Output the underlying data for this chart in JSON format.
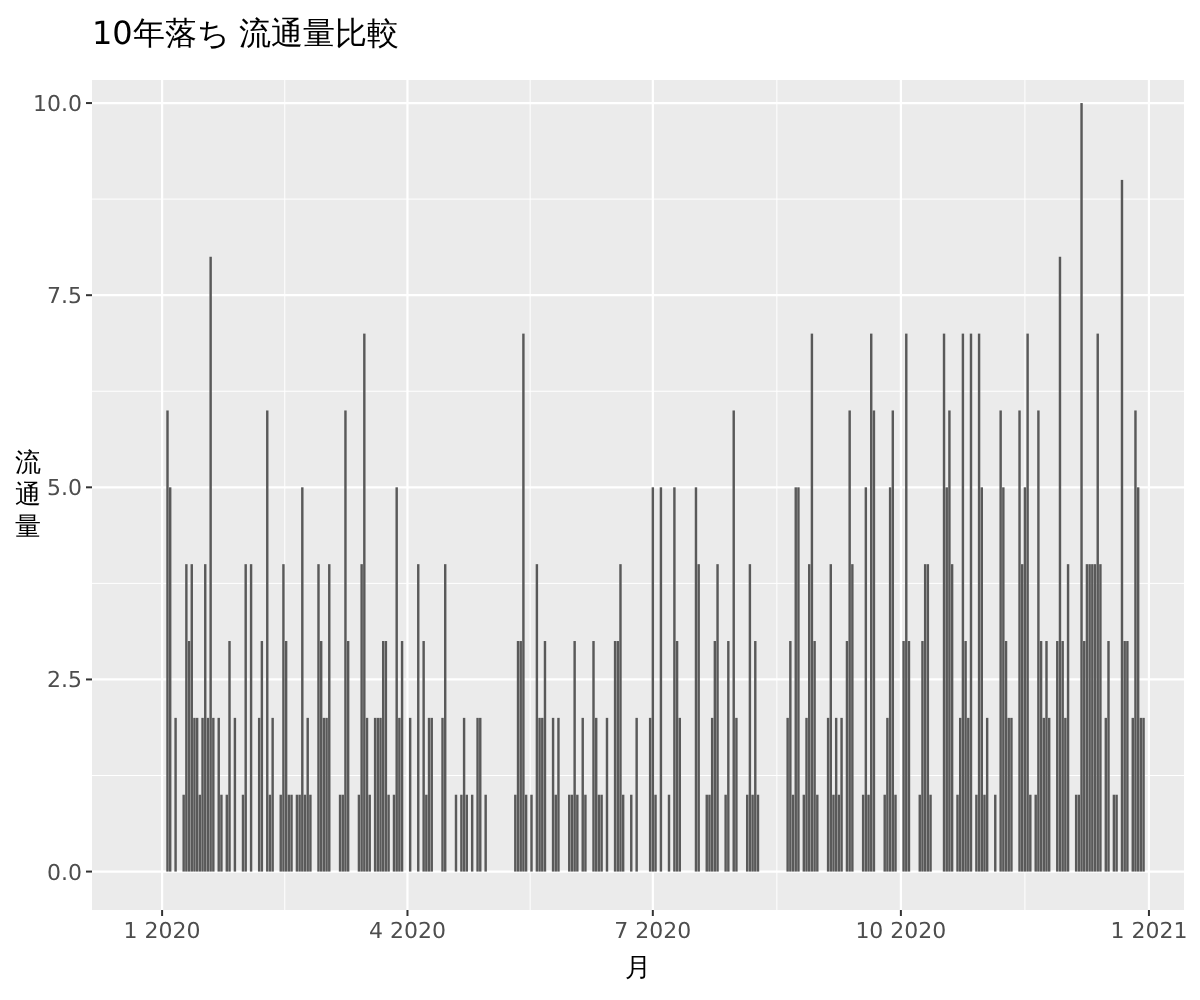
{
  "chart_data": {
    "type": "bar",
    "title": "10年落ち 流通量比較",
    "xlabel": "月",
    "ylabel": "流通量",
    "color": "#595959",
    "grid": true,
    "xlim": [
      "2019-12-06",
      "2021-01-14"
    ],
    "ylim": [
      -0.5,
      10.3
    ],
    "xticks": [
      {
        "value": "2020-01-01",
        "label": "1 2020"
      },
      {
        "value": "2020-04-01",
        "label": "4 2020"
      },
      {
        "value": "2020-07-01",
        "label": "7 2020"
      },
      {
        "value": "2020-10-01",
        "label": "10 2020"
      },
      {
        "value": "2021-01-01",
        "label": "1 2021"
      }
    ],
    "yticks": [
      {
        "value": 0,
        "label": "0.0"
      },
      {
        "value": 2.5,
        "label": "2.5"
      },
      {
        "value": 5,
        "label": "5.0"
      },
      {
        "value": 7.5,
        "label": "7.5"
      },
      {
        "value": 10,
        "label": "10.0"
      }
    ],
    "x": [
      "2020-01-03",
      "2020-01-04",
      "2020-01-06",
      "2020-01-09",
      "2020-01-10",
      "2020-01-11",
      "2020-01-12",
      "2020-01-13",
      "2020-01-14",
      "2020-01-15",
      "2020-01-16",
      "2020-01-17",
      "2020-01-18",
      "2020-01-19",
      "2020-01-20",
      "2020-01-22",
      "2020-01-23",
      "2020-01-25",
      "2020-01-26",
      "2020-01-28",
      "2020-01-31",
      "2020-02-01",
      "2020-02-03",
      "2020-02-06",
      "2020-02-07",
      "2020-02-09",
      "2020-02-10",
      "2020-02-11",
      "2020-02-14",
      "2020-02-15",
      "2020-02-16",
      "2020-02-17",
      "2020-02-18",
      "2020-02-20",
      "2020-02-21",
      "2020-02-22",
      "2020-02-23",
      "2020-02-24",
      "2020-02-25",
      "2020-02-28",
      "2020-02-29",
      "2020-03-01",
      "2020-03-02",
      "2020-03-03",
      "2020-03-07",
      "2020-03-08",
      "2020-03-09",
      "2020-03-10",
      "2020-03-14",
      "2020-03-15",
      "2020-03-16",
      "2020-03-17",
      "2020-03-18",
      "2020-03-20",
      "2020-03-21",
      "2020-03-22",
      "2020-03-23",
      "2020-03-24",
      "2020-03-25",
      "2020-03-27",
      "2020-03-28",
      "2020-03-29",
      "2020-03-30",
      "2020-04-02",
      "2020-04-05",
      "2020-04-07",
      "2020-04-08",
      "2020-04-09",
      "2020-04-10",
      "2020-04-14",
      "2020-04-15",
      "2020-04-19",
      "2020-04-21",
      "2020-04-22",
      "2020-04-23",
      "2020-04-25",
      "2020-04-27",
      "2020-04-28",
      "2020-04-30",
      "2020-05-11",
      "2020-05-12",
      "2020-05-13",
      "2020-05-14",
      "2020-05-15",
      "2020-05-17",
      "2020-05-19",
      "2020-05-20",
      "2020-05-21",
      "2020-05-22",
      "2020-05-25",
      "2020-05-26",
      "2020-05-27",
      "2020-05-31",
      "2020-06-01",
      "2020-06-02",
      "2020-06-03",
      "2020-06-05",
      "2020-06-06",
      "2020-06-09",
      "2020-06-10",
      "2020-06-11",
      "2020-06-12",
      "2020-06-14",
      "2020-06-17",
      "2020-06-18",
      "2020-06-19",
      "2020-06-20",
      "2020-06-23",
      "2020-06-25",
      "2020-06-30",
      "2020-07-01",
      "2020-07-02",
      "2020-07-04",
      "2020-07-07",
      "2020-07-09",
      "2020-07-10",
      "2020-07-11",
      "2020-07-17",
      "2020-07-18",
      "2020-07-21",
      "2020-07-22",
      "2020-07-23",
      "2020-07-24",
      "2020-07-25",
      "2020-07-28",
      "2020-07-29",
      "2020-07-31",
      "2020-08-01",
      "2020-08-05",
      "2020-08-06",
      "2020-08-07",
      "2020-08-08",
      "2020-08-09",
      "2020-08-20",
      "2020-08-21",
      "2020-08-22",
      "2020-08-23",
      "2020-08-24",
      "2020-08-26",
      "2020-08-27",
      "2020-08-28",
      "2020-08-29",
      "2020-08-30",
      "2020-08-31",
      "2020-09-04",
      "2020-09-05",
      "2020-09-06",
      "2020-09-07",
      "2020-09-08",
      "2020-09-09",
      "2020-09-11",
      "2020-09-12",
      "2020-09-13",
      "2020-09-17",
      "2020-09-18",
      "2020-09-19",
      "2020-09-20",
      "2020-09-21",
      "2020-09-25",
      "2020-09-26",
      "2020-09-27",
      "2020-09-28",
      "2020-09-29",
      "2020-10-02",
      "2020-10-03",
      "2020-10-04",
      "2020-10-08",
      "2020-10-09",
      "2020-10-10",
      "2020-10-11",
      "2020-10-12",
      "2020-10-17",
      "2020-10-18",
      "2020-10-19",
      "2020-10-20",
      "2020-10-22",
      "2020-10-23",
      "2020-10-24",
      "2020-10-25",
      "2020-10-26",
      "2020-10-27",
      "2020-10-29",
      "2020-10-30",
      "2020-10-31",
      "2020-11-01",
      "2020-11-02",
      "2020-11-05",
      "2020-11-07",
      "2020-11-08",
      "2020-11-09",
      "2020-11-10",
      "2020-11-11",
      "2020-11-14",
      "2020-11-15",
      "2020-11-16",
      "2020-11-17",
      "2020-11-18",
      "2020-11-20",
      "2020-11-21",
      "2020-11-22",
      "2020-11-23",
      "2020-11-24",
      "2020-11-25",
      "2020-11-28",
      "2020-11-29",
      "2020-11-30",
      "2020-12-01",
      "2020-12-02",
      "2020-12-05",
      "2020-12-06",
      "2020-12-07",
      "2020-12-08",
      "2020-12-09",
      "2020-12-10",
      "2020-12-11",
      "2020-12-12",
      "2020-12-13",
      "2020-12-14",
      "2020-12-16",
      "2020-12-17",
      "2020-12-19",
      "2020-12-20",
      "2020-12-22",
      "2020-12-23",
      "2020-12-24",
      "2020-12-26",
      "2020-12-27",
      "2020-12-28",
      "2020-12-29",
      "2020-12-30"
    ],
    "values": [
      6,
      5,
      2,
      1,
      4,
      3,
      4,
      2,
      2,
      1,
      2,
      4,
      2,
      8,
      2,
      2,
      1,
      1,
      3,
      2,
      1,
      4,
      4,
      2,
      3,
      6,
      1,
      2,
      1,
      4,
      3,
      1,
      1,
      1,
      1,
      5,
      1,
      2,
      1,
      4,
      3,
      2,
      2,
      4,
      1,
      1,
      6,
      3,
      1,
      4,
      7,
      2,
      1,
      2,
      2,
      2,
      3,
      3,
      1,
      1,
      5,
      2,
      3,
      2,
      4,
      3,
      1,
      2,
      2,
      2,
      4,
      1,
      1,
      2,
      1,
      1,
      2,
      2,
      1,
      1,
      3,
      3,
      7,
      1,
      1,
      4,
      2,
      2,
      3,
      2,
      1,
      2,
      1,
      1,
      3,
      1,
      2,
      1,
      3,
      2,
      1,
      1,
      2,
      3,
      3,
      4,
      1,
      1,
      2,
      2,
      5,
      1,
      5,
      1,
      5,
      3,
      2,
      5,
      4,
      1,
      1,
      2,
      3,
      4,
      1,
      3,
      6,
      2,
      1,
      4,
      1,
      3,
      1,
      2,
      3,
      1,
      5,
      5,
      1,
      2,
      4,
      7,
      3,
      1,
      2,
      4,
      1,
      2,
      1,
      2,
      3,
      6,
      4,
      1,
      5,
      1,
      7,
      6,
      1,
      2,
      5,
      6,
      1,
      3,
      7,
      3,
      1,
      3,
      4,
      4,
      1,
      7,
      5,
      6,
      4,
      1,
      2,
      7,
      3,
      2,
      7,
      1,
      7,
      5,
      1,
      2,
      1,
      6,
      5,
      3,
      2,
      2,
      6,
      4,
      5,
      7,
      1,
      1,
      6,
      3,
      2,
      3,
      2,
      3,
      8,
      3,
      2,
      4,
      1,
      1,
      10,
      3,
      4,
      4,
      4,
      4,
      7,
      4,
      2,
      3,
      1,
      1,
      9,
      3,
      3,
      2,
      6,
      5,
      2,
      2
    ]
  }
}
